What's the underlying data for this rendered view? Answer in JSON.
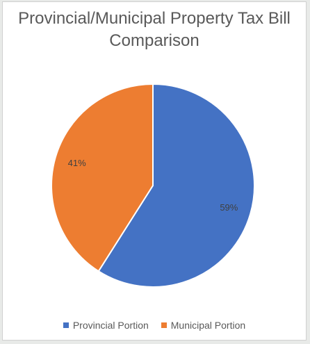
{
  "chart_data": {
    "type": "pie",
    "title_line1": "Provincial/Municipal Property Tax Bill",
    "title_line2": "Comparison",
    "slices": [
      {
        "name": "Provincial Portion",
        "value": 59,
        "label": "59%",
        "color": "#4472c4"
      },
      {
        "name": "Municipal Portion",
        "value": 41,
        "label": "41%",
        "color": "#ed7d31"
      }
    ],
    "legend_position": "bottom"
  }
}
